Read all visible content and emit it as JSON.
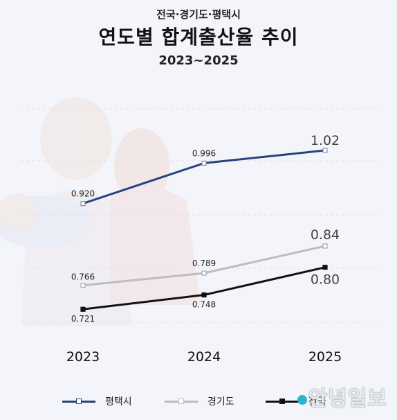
{
  "header": {
    "subtitle": "전국·경기도·평택시",
    "title": "연도별 합계출산율 추이",
    "period": "2023~2025"
  },
  "legend": {
    "items": [
      "평택시",
      "경기도",
      "전국"
    ]
  },
  "watermark": "안녕일보",
  "chart_data": {
    "type": "line",
    "x": [
      "2023",
      "2024",
      "2025"
    ],
    "series": [
      {
        "name": "평택시",
        "values": [
          0.92,
          0.996,
          1.02
        ],
        "labels": [
          "0.920",
          "0.996",
          "1.02"
        ],
        "color": "#27427e"
      },
      {
        "name": "경기도",
        "values": [
          0.766,
          0.789,
          0.84
        ],
        "labels": [
          "0.766",
          "0.789",
          "0.84"
        ],
        "color": "#bdbdbd"
      },
      {
        "name": "전국",
        "values": [
          0.721,
          0.748,
          0.8
        ],
        "labels": [
          "0.721",
          "0.748",
          "0.80"
        ],
        "color": "#111111"
      }
    ],
    "title": "연도별 합계출산율 추이",
    "xlabel": "",
    "ylabel": "",
    "grid": true,
    "legend": "bottom"
  }
}
